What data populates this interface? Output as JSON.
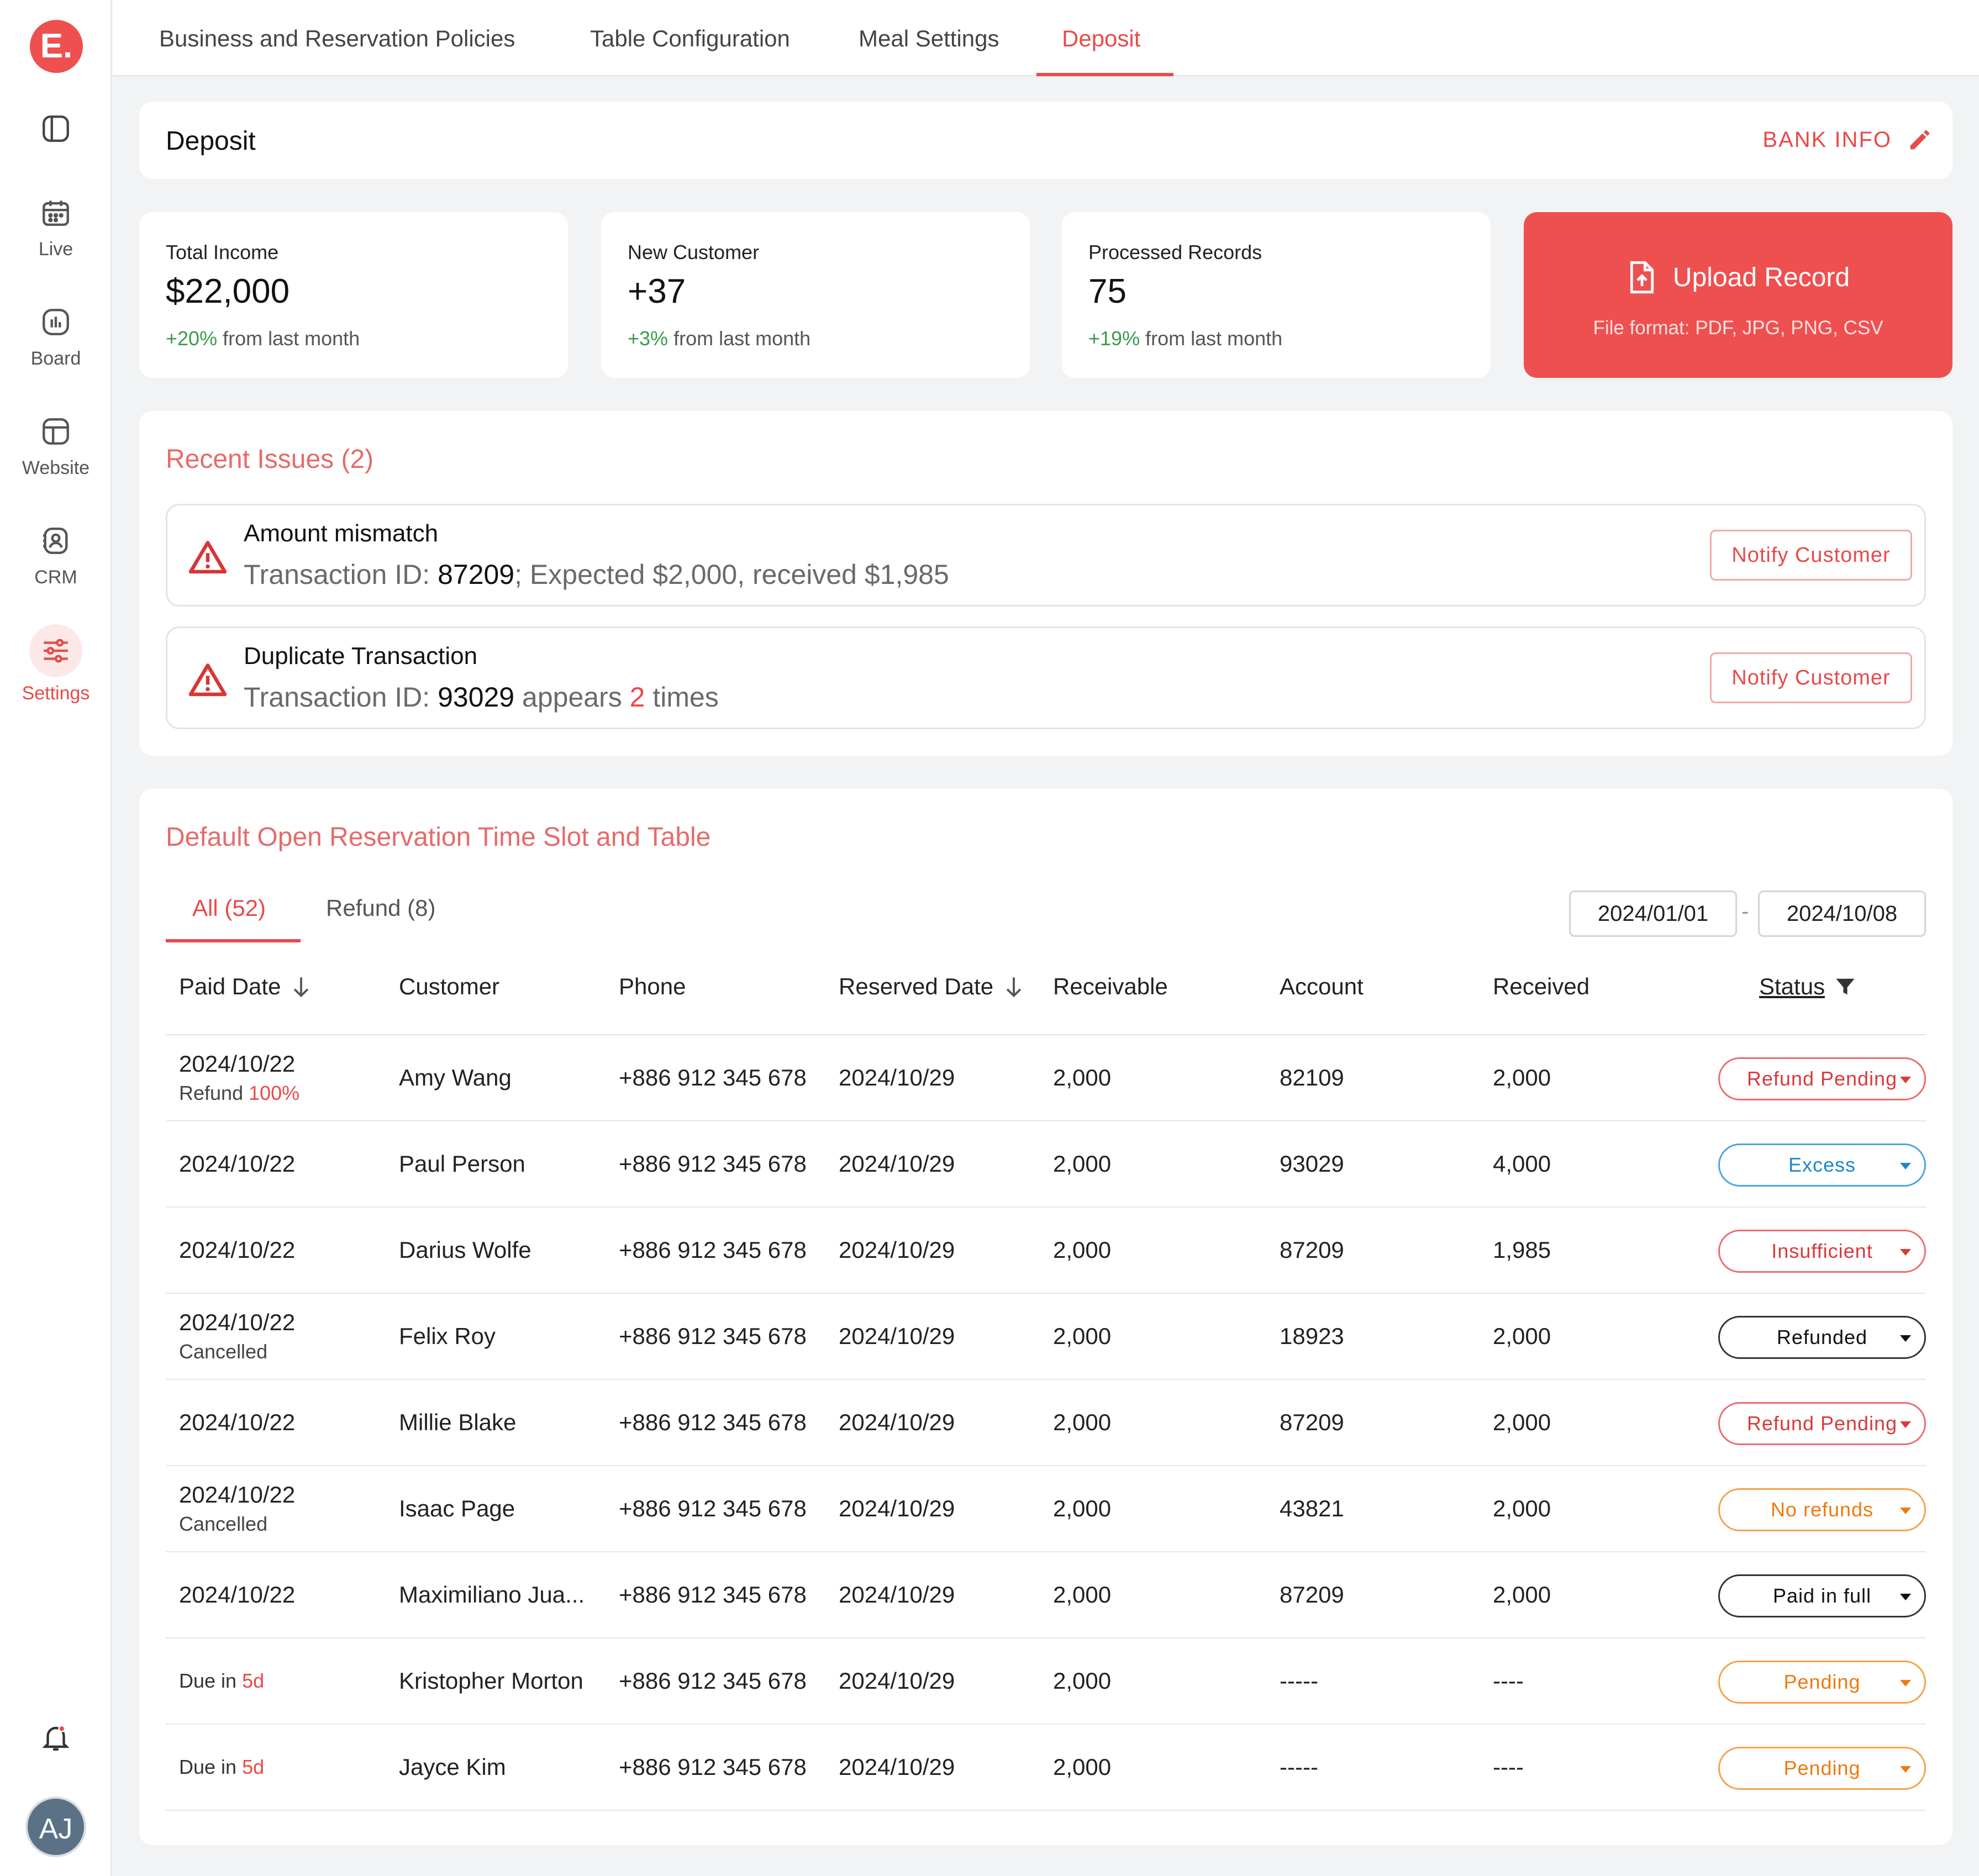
{
  "brand": {
    "logo_text": "E."
  },
  "sidebar": {
    "items": [
      {
        "label": "Live",
        "icon": "calendar-icon"
      },
      {
        "label": "Board",
        "icon": "chart-icon"
      },
      {
        "label": "Website",
        "icon": "layout-icon"
      },
      {
        "label": "CRM",
        "icon": "contact-icon"
      },
      {
        "label": "Settings",
        "icon": "sliders-icon",
        "active": true
      }
    ],
    "avatar_initials": "AJ"
  },
  "tabs": [
    {
      "label": "Business and Reservation Policies"
    },
    {
      "label": "Table Configuration"
    },
    {
      "label": "Meal Settings"
    },
    {
      "label": "Deposit",
      "active": true
    }
  ],
  "header": {
    "title": "Deposit",
    "bank_info_label": "BANK INFO"
  },
  "stats": [
    {
      "label": "Total Income",
      "value": "$22,000",
      "change": "+20%",
      "suffix": "from last month"
    },
    {
      "label": "New Customer",
      "value": "+37",
      "change": "+3%",
      "suffix": "from last month"
    },
    {
      "label": "Processed Records",
      "value": "75",
      "change": "+19%",
      "suffix": "from last month"
    }
  ],
  "upload": {
    "title": "Upload Record",
    "formats": "File format: PDF, JPG, PNG, CSV"
  },
  "issues": {
    "title": "Recent Issues (2)",
    "items": [
      {
        "title": "Amount mismatch",
        "prefix": "Transaction ID:",
        "id": "87209",
        "detail": "; Expected $2,000, received $1,985",
        "button": "Notify Customer"
      },
      {
        "title": "Duplicate Transaction",
        "prefix": "Transaction ID:",
        "id": "93029",
        "mid": " appears ",
        "count": "2",
        "end": " times",
        "button": "Notify Customer"
      }
    ]
  },
  "records": {
    "title": "Default Open Reservation Time Slot and Table",
    "subtabs": [
      {
        "label": "All (52)",
        "active": true
      },
      {
        "label": "Refund (8)"
      }
    ],
    "date_from": "2024/01/01",
    "date_sep": "-",
    "date_to": "2024/10/08",
    "columns": [
      "Paid Date",
      "Customer",
      "Phone",
      "Reserved Date",
      "Receivable",
      "Account",
      "Received",
      "Status"
    ],
    "rows": [
      {
        "paid": "2024/10/22",
        "note_label": "Refund",
        "note_value": "100%",
        "customer": "Amy Wang",
        "phone": "+886 912 345 678",
        "reserved": "2024/10/29",
        "receivable": "2,000",
        "account": "82109",
        "received": "2,000",
        "status": "Refund Pending",
        "tone": "red"
      },
      {
        "paid": "2024/10/22",
        "customer": "Paul Person",
        "phone": "+886 912 345 678",
        "reserved": "2024/10/29",
        "receivable": "2,000",
        "account": "93029",
        "received": "4,000",
        "status": "Excess",
        "tone": "blue"
      },
      {
        "paid": "2024/10/22",
        "customer": "Darius Wolfe",
        "phone": "+886 912 345 678",
        "reserved": "2024/10/29",
        "receivable": "2,000",
        "account": "87209",
        "received": "1,985",
        "status": "Insufficient",
        "tone": "red"
      },
      {
        "paid": "2024/10/22",
        "note_label": "Cancelled",
        "customer": "Felix Roy",
        "phone": "+886 912 345 678",
        "reserved": "2024/10/29",
        "receivable": "2,000",
        "account": "18923",
        "received": "2,000",
        "status": "Refunded",
        "tone": "black"
      },
      {
        "paid": "2024/10/22",
        "customer": "Millie Blake",
        "phone": "+886 912 345 678",
        "reserved": "2024/10/29",
        "receivable": "2,000",
        "account": "87209",
        "received": "2,000",
        "status": "Refund Pending",
        "tone": "red"
      },
      {
        "paid": "2024/10/22",
        "note_label": "Cancelled",
        "customer": "Isaac Page",
        "phone": "+886 912 345 678",
        "reserved": "2024/10/29",
        "receivable": "2,000",
        "account": "43821",
        "received": "2,000",
        "status": "No refunds",
        "tone": "orange"
      },
      {
        "paid": "2024/10/22",
        "customer": "Maximiliano Jua...",
        "phone": "+886 912 345 678",
        "reserved": "2024/10/29",
        "receivable": "2,000",
        "account": "87209",
        "received": "2,000",
        "status": "Paid in full",
        "tone": "black"
      },
      {
        "due_label": "Due in",
        "due_value": "5d",
        "customer": "Kristopher Morton",
        "phone": "+886 912 345 678",
        "reserved": "2024/10/29",
        "receivable": "2,000",
        "account": "-----",
        "received": "----",
        "status": "Pending",
        "tone": "orange"
      },
      {
        "due_label": "Due in",
        "due_value": "5d",
        "customer": "Jayce Kim",
        "phone": "+886 912 345 678",
        "reserved": "2024/10/29",
        "receivable": "2,000",
        "account": "-----",
        "received": "----",
        "status": "Pending",
        "tone": "orange"
      }
    ]
  },
  "colors": {
    "accent": "#e84a4a",
    "upload_bg": "#ee5050",
    "positive": "#3c9a4c",
    "excess": "#1e88cc",
    "pending": "#ee7a12"
  }
}
